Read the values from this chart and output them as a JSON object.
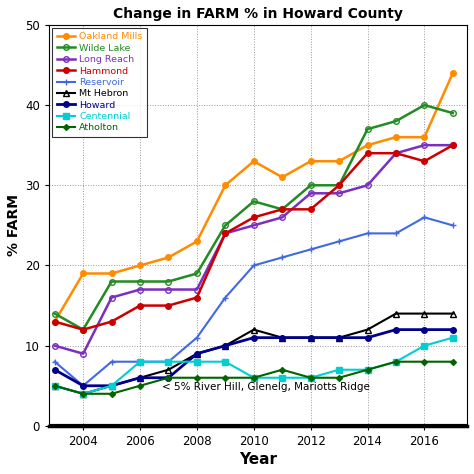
{
  "title": "Change in FARM % in Howard County",
  "xlabel": "Year",
  "ylabel": "% FARM",
  "xlim": [
    2002.8,
    2017.5
  ],
  "ylim": [
    0,
    50
  ],
  "yticks": [
    0,
    10,
    20,
    30,
    40,
    50
  ],
  "xticks": [
    2004,
    2006,
    2008,
    2010,
    2012,
    2014,
    2016
  ],
  "annotation": "< 5% River Hill, Glenelg, Mariotts Ridge",
  "series": {
    "Oakland Mills": {
      "color": "#FF8C00",
      "marker": "o",
      "markerface": "fill",
      "markersize": 4,
      "linewidth": 1.8,
      "years": [
        2003,
        2004,
        2005,
        2006,
        2007,
        2008,
        2009,
        2010,
        2011,
        2012,
        2013,
        2014,
        2015,
        2016,
        2017
      ],
      "values": [
        13,
        19,
        19,
        20,
        21,
        23,
        30,
        33,
        31,
        33,
        33,
        35,
        36,
        36,
        44
      ]
    },
    "Wilde Lake": {
      "color": "#228B22",
      "marker": "o",
      "markerface": "none",
      "markersize": 4,
      "linewidth": 1.8,
      "years": [
        2003,
        2004,
        2005,
        2006,
        2007,
        2008,
        2009,
        2010,
        2011,
        2012,
        2013,
        2014,
        2015,
        2016,
        2017
      ],
      "values": [
        14,
        12,
        18,
        18,
        18,
        19,
        25,
        28,
        27,
        30,
        30,
        37,
        38,
        40,
        39
      ]
    },
    "Long Reach": {
      "color": "#7B2FBE",
      "marker": "o",
      "markerface": "none",
      "markersize": 4,
      "linewidth": 1.8,
      "years": [
        2003,
        2004,
        2005,
        2006,
        2007,
        2008,
        2009,
        2010,
        2011,
        2012,
        2013,
        2014,
        2015,
        2016,
        2017
      ],
      "values": [
        10,
        9,
        16,
        17,
        17,
        17,
        24,
        25,
        26,
        29,
        29,
        30,
        34,
        35,
        35
      ]
    },
    "Hammond": {
      "color": "#CC0000",
      "marker": "o",
      "markerface": "fill",
      "markersize": 4,
      "linewidth": 1.8,
      "years": [
        2003,
        2004,
        2005,
        2006,
        2007,
        2008,
        2009,
        2010,
        2011,
        2012,
        2013,
        2014,
        2015,
        2016,
        2017
      ],
      "values": [
        13,
        12,
        13,
        15,
        15,
        16,
        24,
        26,
        27,
        27,
        30,
        34,
        34,
        33,
        35
      ]
    },
    "Reservoir": {
      "color": "#4169E1",
      "marker": "+",
      "markerface": "fill",
      "markersize": 5,
      "linewidth": 1.5,
      "years": [
        2003,
        2004,
        2005,
        2006,
        2007,
        2008,
        2009,
        2010,
        2011,
        2012,
        2013,
        2014,
        2015,
        2016,
        2017
      ],
      "values": [
        8,
        5,
        8,
        8,
        8,
        11,
        16,
        20,
        21,
        22,
        23,
        24,
        24,
        26,
        25
      ]
    },
    "Mt Hebron": {
      "color": "#000000",
      "marker": "^",
      "markerface": "none",
      "markersize": 4,
      "linewidth": 1.5,
      "years": [
        2003,
        2004,
        2005,
        2006,
        2007,
        2008,
        2009,
        2010,
        2011,
        2012,
        2013,
        2014,
        2015,
        2016,
        2017
      ],
      "values": [
        5,
        4,
        5,
        6,
        7,
        9,
        10,
        12,
        11,
        11,
        11,
        12,
        14,
        14,
        14
      ]
    },
    "Howard": {
      "color": "#00008B",
      "marker": "o",
      "markerface": "fill",
      "markersize": 4,
      "linewidth": 2.0,
      "years": [
        2003,
        2004,
        2005,
        2006,
        2007,
        2008,
        2009,
        2010,
        2011,
        2012,
        2013,
        2014,
        2015,
        2016,
        2017
      ],
      "values": [
        7,
        5,
        5,
        6,
        6,
        9,
        10,
        11,
        11,
        11,
        11,
        11,
        12,
        12,
        12
      ]
    },
    "Centennial": {
      "color": "#00CED1",
      "marker": "s",
      "markerface": "fill",
      "markersize": 4,
      "linewidth": 1.5,
      "years": [
        2003,
        2004,
        2005,
        2006,
        2007,
        2008,
        2009,
        2010,
        2011,
        2012,
        2013,
        2014,
        2015,
        2016,
        2017
      ],
      "values": [
        5,
        4,
        5,
        8,
        8,
        8,
        8,
        6,
        6,
        6,
        7,
        7,
        8,
        10,
        11
      ]
    },
    "Atholton": {
      "color": "#006400",
      "marker": "D",
      "markerface": "fill",
      "markersize": 3,
      "linewidth": 1.5,
      "years": [
        2003,
        2004,
        2005,
        2006,
        2007,
        2008,
        2009,
        2010,
        2011,
        2012,
        2013,
        2014,
        2015,
        2016,
        2017
      ],
      "values": [
        5,
        4,
        4,
        5,
        6,
        6,
        6,
        6,
        7,
        6,
        6,
        7,
        8,
        8,
        8
      ]
    }
  },
  "legend_colors": {
    "Oakland Mills": "#FF8C00",
    "Wilde Lake": "#228B22",
    "Long Reach": "#7B2FBE",
    "Hammond": "#CC0000",
    "Reservoir": "#4169E1",
    "Mt Hebron": "#000000",
    "Howard": "#00008B",
    "Centennial": "#00CED1",
    "Atholton": "#006400"
  }
}
